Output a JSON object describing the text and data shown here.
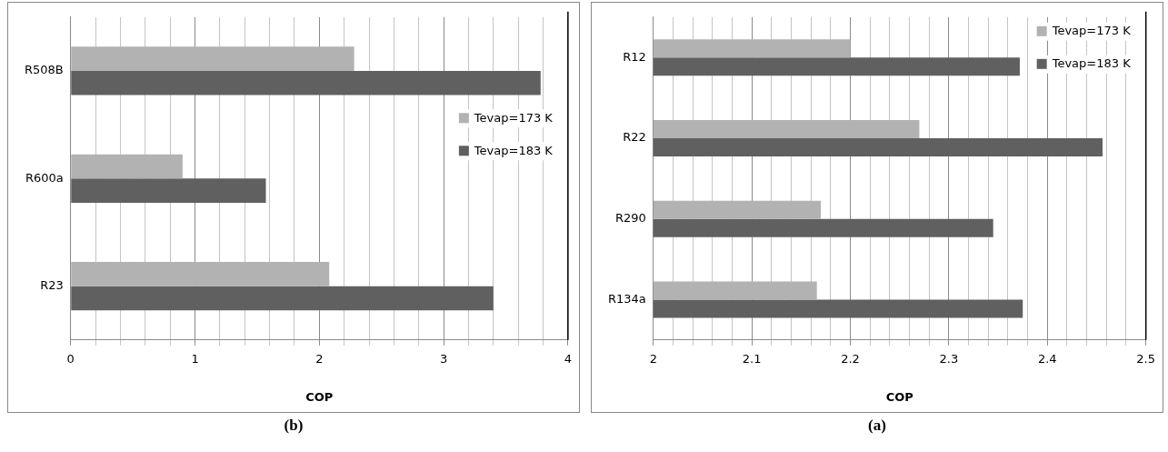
{
  "chart_data": [
    {
      "type": "bar",
      "orientation": "horizontal",
      "categories": [
        "R508B",
        "R600a",
        "R23"
      ],
      "xlabel": "COP",
      "annotations": [
        "(b)"
      ],
      "series": [
        {
          "name": "Tevap=173 K",
          "color": "#b2b2b2",
          "values": [
            2.28,
            0.9,
            2.08
          ]
        },
        {
          "name": "Tevap=183 K",
          "color": "#606060",
          "values": [
            3.78,
            1.57,
            3.4
          ]
        }
      ],
      "xlim": [
        0,
        4
      ],
      "xticks": [
        0,
        {
          "value": 0.2,
          "label": null
        },
        {
          "value": 0.4,
          "label": null
        },
        {
          "value": 0.6,
          "label": null
        },
        {
          "value": 0.8,
          "label": null
        },
        1,
        {
          "value": 1.2,
          "label": null
        },
        {
          "value": 1.4,
          "label": null
        },
        {
          "value": 1.6,
          "label": null
        },
        {
          "value": 1.8,
          "label": null
        },
        2,
        {
          "value": 2.2,
          "label": null
        },
        {
          "value": 2.4,
          "label": null
        },
        {
          "value": 2.6,
          "label": null
        },
        {
          "value": 2.8,
          "label": null
        },
        3,
        {
          "value": 3.2,
          "label": null
        },
        {
          "value": 3.4,
          "label": null
        },
        {
          "value": 3.6,
          "label": null
        },
        {
          "value": 3.8,
          "label": null
        },
        4
      ],
      "grid": "x",
      "legend": "right"
    },
    {
      "type": "bar",
      "orientation": "horizontal",
      "categories": [
        "R12",
        "R22",
        "R290",
        "R134a"
      ],
      "xlabel": "COP",
      "annotations": [
        "(a)"
      ],
      "series": [
        {
          "name": "Tevap=173 K",
          "color": "#b2b2b2",
          "values": [
            2.2,
            2.27,
            2.17,
            2.166
          ]
        },
        {
          "name": "Tevap=183 K",
          "color": "#606060",
          "values": [
            2.372,
            2.456,
            2.345,
            2.375
          ]
        }
      ],
      "xlim": [
        2,
        2.5
      ],
      "xticks": [
        2,
        {
          "value": 2.02,
          "label": null
        },
        {
          "value": 2.04,
          "label": null
        },
        {
          "value": 2.06,
          "label": null
        },
        {
          "value": 2.08,
          "label": null
        },
        2.1,
        {
          "value": 2.12,
          "label": null
        },
        {
          "value": 2.14,
          "label": null
        },
        {
          "value": 2.16,
          "label": null
        },
        {
          "value": 2.18,
          "label": null
        },
        2.2,
        {
          "value": 2.22,
          "label": null
        },
        {
          "value": 2.24,
          "label": null
        },
        {
          "value": 2.26,
          "label": null
        },
        {
          "value": 2.28,
          "label": null
        },
        2.3,
        {
          "value": 2.32,
          "label": null
        },
        {
          "value": 2.34,
          "label": null
        },
        {
          "value": 2.36,
          "label": null
        },
        {
          "value": 2.38,
          "label": null
        },
        2.4,
        {
          "value": 2.42,
          "label": null
        },
        {
          "value": 2.44,
          "label": null
        },
        {
          "value": 2.46,
          "label": null
        },
        {
          "value": 2.48,
          "label": null
        },
        2.5
      ],
      "grid": "x",
      "legend": "top right"
    }
  ]
}
